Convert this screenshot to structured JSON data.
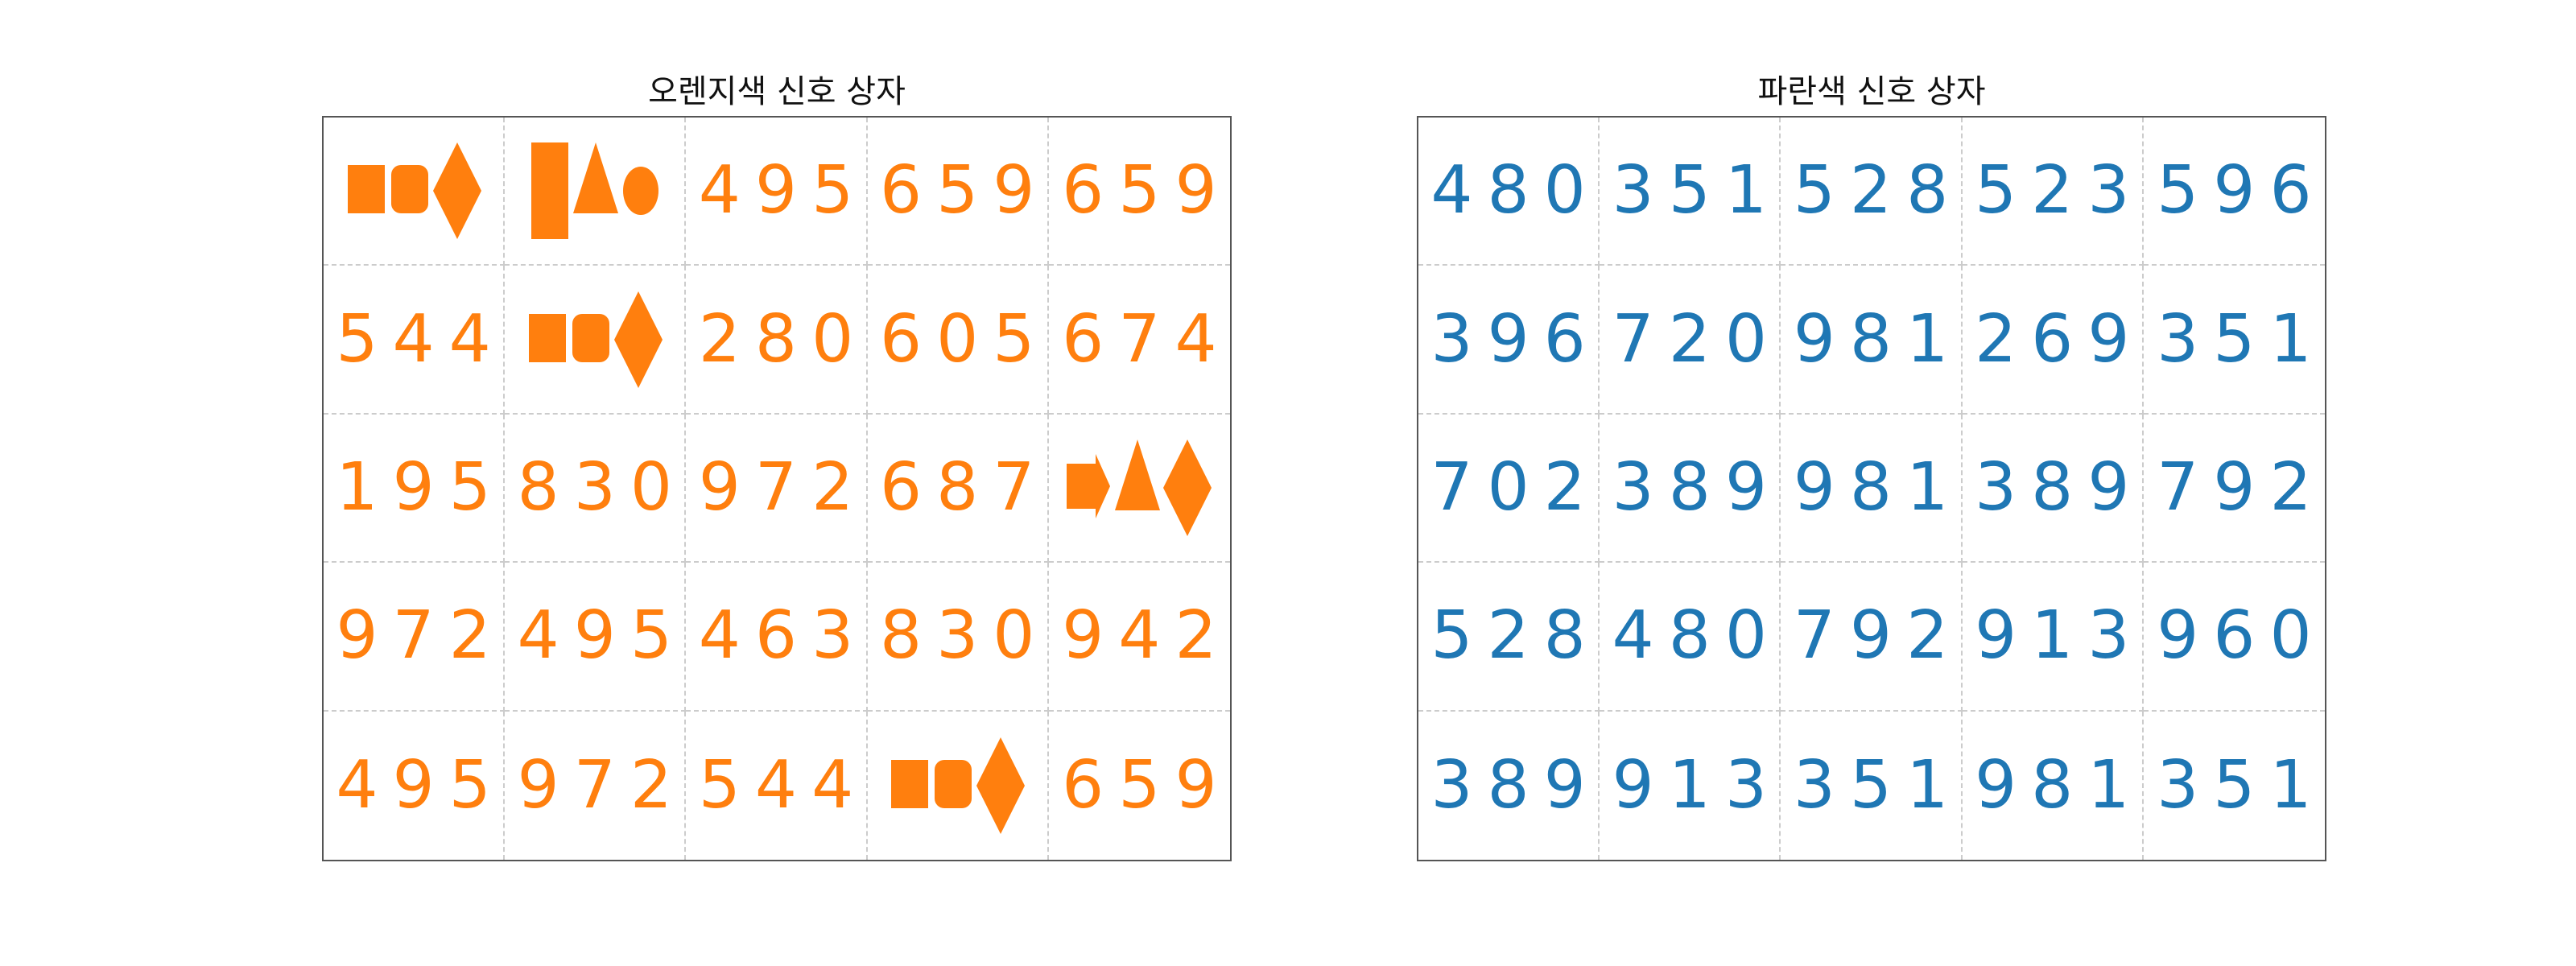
{
  "colors": {
    "orange": "#ff7f0e",
    "blue": "#1f77b4"
  },
  "boxes": [
    {
      "title": "오렌지색 신호 상자",
      "color": "orange",
      "cells": [
        [
          {
            "glyphs": [
              "square-icon",
              "rounded-square-icon",
              "diamond-icon"
            ]
          },
          {
            "glyphs": [
              "tall-rectangle-icon",
              "triangle-icon",
              "ellipse-icon"
            ]
          },
          "495",
          "659",
          "659"
        ],
        [
          "544",
          {
            "glyphs": [
              "square-icon",
              "rounded-square-icon",
              "diamond-icon"
            ]
          },
          "280",
          "605",
          "674"
        ],
        [
          "195",
          "830",
          "972",
          "687",
          {
            "glyphs": [
              "arrow-icon",
              "triangle-icon",
              "diamond-icon"
            ]
          }
        ],
        [
          "972",
          "495",
          "463",
          "830",
          "942"
        ],
        [
          "495",
          "972",
          "544",
          {
            "glyphs": [
              "square-icon",
              "rounded-square-icon",
              "diamond-icon"
            ]
          },
          "659"
        ]
      ]
    },
    {
      "title": "파란색 신호 상자",
      "color": "blue",
      "cells": [
        [
          "480",
          "351",
          "528",
          "523",
          "596"
        ],
        [
          "396",
          "720",
          "981",
          "269",
          "351"
        ],
        [
          "702",
          "389",
          "981",
          "389",
          "792"
        ],
        [
          "528",
          "480",
          "792",
          "913",
          "960"
        ],
        [
          "389",
          "913",
          "351",
          "981",
          "351"
        ]
      ]
    }
  ]
}
